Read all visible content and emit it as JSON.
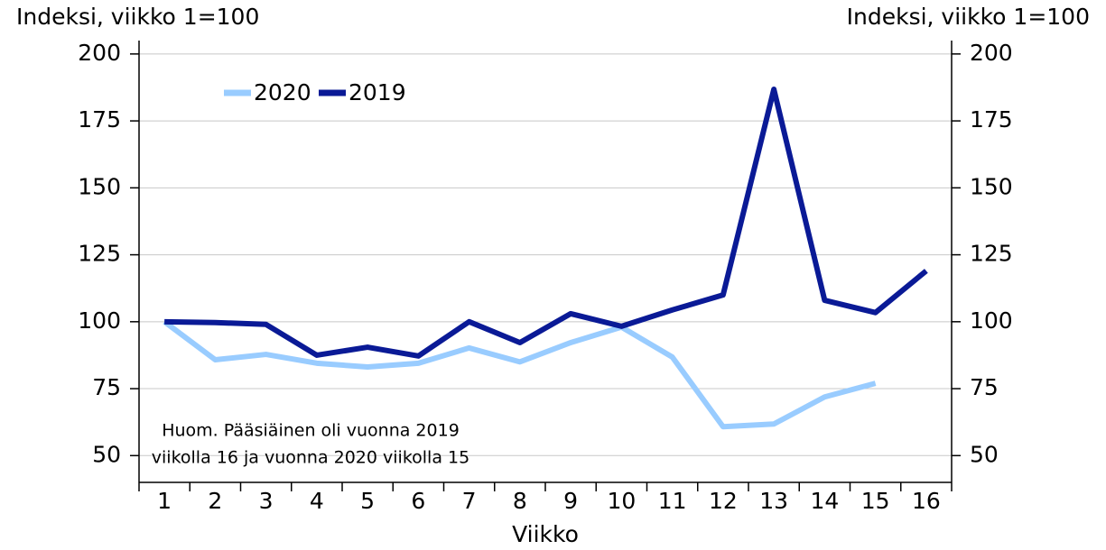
{
  "chart_data": {
    "type": "line",
    "y_label_left": "Indeksi, viikko 1=100",
    "y_label_right": "Indeksi, viikko 1=100",
    "x_label": "Viikko",
    "annotation": [
      "Huom. Pääsiäinen oli vuonna 2019",
      "viikolla 16 ja vuonna 2020 viikolla 15"
    ],
    "categories": [
      "1",
      "2",
      "3",
      "4",
      "5",
      "6",
      "7",
      "8",
      "9",
      "10",
      "11",
      "12",
      "13",
      "14",
      "15",
      "16"
    ],
    "series": [
      {
        "name": "2020",
        "color": "#99ccff",
        "values": [
          100,
          85.8,
          87.8,
          84.5,
          83.1,
          84.5,
          90.2,
          85,
          92.2,
          98,
          86.8,
          60.8,
          61.8,
          71.9,
          77,
          null
        ]
      },
      {
        "name": "2019",
        "color": "#0a1a96",
        "values": [
          100,
          99.7,
          99,
          87.5,
          90.5,
          87.2,
          100,
          92.2,
          103,
          98.3,
          104.4,
          110,
          186.8,
          108,
          103.4,
          119
        ]
      }
    ],
    "ylim": [
      40,
      205
    ],
    "yticks": [
      50,
      75,
      100,
      125,
      150,
      175,
      200
    ],
    "y2lim": [
      40,
      205
    ],
    "y2ticks": [
      50,
      75,
      100,
      125,
      150,
      175,
      200
    ],
    "grid": true,
    "legend": "top-left"
  }
}
